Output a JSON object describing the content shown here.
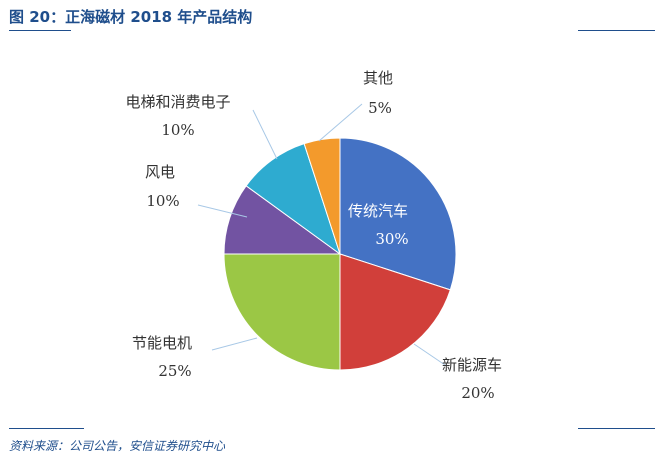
{
  "figure": {
    "title": "图 20：正海磁材 2018 年产品结构",
    "source": "资料来源：公司公告，安信证券研究中心"
  },
  "colors": {
    "accent": "#1f4e8c",
    "leader_line": "#a8c8e6"
  },
  "chart_data": {
    "type": "pie",
    "title": "",
    "slices": [
      {
        "label": "传统汽车",
        "value": 30,
        "value_label": "30%",
        "color": "#4472c4"
      },
      {
        "label": "新能源车",
        "value": 20,
        "value_label": "20%",
        "color": "#d13f3a"
      },
      {
        "label": "节能电机",
        "value": 25,
        "value_label": "25%",
        "color": "#9bc745"
      },
      {
        "label": "风电",
        "value": 10,
        "value_label": "10%",
        "color": "#7253a2"
      },
      {
        "label": "电梯和消费电子",
        "value": 10,
        "value_label": "10%",
        "color": "#2eabd0"
      },
      {
        "label": "其他",
        "value": 5,
        "value_label": "5%",
        "color": "#f39a2c"
      }
    ],
    "start": "12 o'clock",
    "direction": "clockwise",
    "legend": "none"
  }
}
